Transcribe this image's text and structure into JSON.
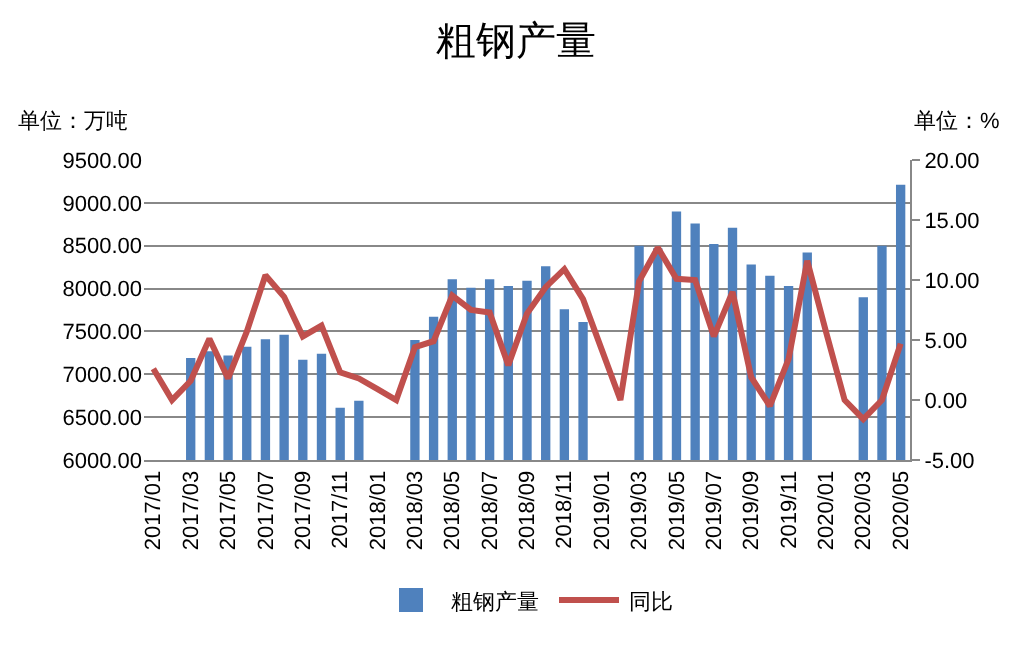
{
  "chart_data": {
    "type": "bar",
    "title": "粗钢产量",
    "ylabel": "单位：万吨",
    "y2label": "单位：%",
    "categories": [
      "2017/01",
      null,
      "2017/03",
      null,
      "2017/05",
      null,
      "2017/07",
      null,
      "2017/09",
      null,
      "2017/11",
      null,
      "2018/01",
      null,
      "2018/03",
      null,
      "2018/05",
      null,
      "2018/07",
      null,
      "2018/09",
      null,
      "2018/11",
      null,
      "2019/01",
      null,
      "2019/03",
      null,
      "2019/05",
      null,
      "2019/07",
      null,
      "2019/09",
      null,
      "2019/11",
      null,
      "2020/01",
      null,
      "2020/03",
      null,
      "2020/05"
    ],
    "series": [
      {
        "name": "粗钢产量",
        "color": "#4f81bd",
        "values": [
          null,
          null,
          7190,
          7270,
          7220,
          7320,
          7410,
          7460,
          7170,
          7240,
          6610,
          6690,
          null,
          null,
          7400,
          7670,
          8110,
          8010,
          8110,
          8030,
          8090,
          8260,
          7760,
          7610,
          null,
          null,
          8500,
          8470,
          8900,
          8760,
          8520,
          8710,
          8280,
          8150,
          8030,
          8420,
          null,
          null,
          7900,
          8500,
          9210
        ]
      },
      {
        "name": "同比",
        "type": "line",
        "axis": "y2",
        "color": "#c0504d",
        "values": [
          2.6,
          0,
          1.6,
          5.1,
          1.8,
          5.7,
          10.4,
          8.6,
          5.3,
          6.2,
          2.3,
          1.8,
          0.9,
          0,
          4.4,
          4.9,
          8.7,
          7.5,
          7.3,
          2.9,
          7.2,
          9.4,
          10.9,
          8.4,
          4.2,
          0,
          9.9,
          12.7,
          10.1,
          10,
          5.3,
          9,
          1.9,
          -0.5,
          3.4,
          11.6,
          5.7,
          0,
          -1.6,
          0,
          4.7
        ]
      }
    ],
    "ylim": [
      6000,
      9500
    ],
    "yticks": [
      {
        "value": 6000,
        "label": "6000.00"
      },
      {
        "value": 6500,
        "label": "6500.00"
      },
      {
        "value": 7000,
        "label": "7000.00"
      },
      {
        "value": 7500,
        "label": "7500.00"
      },
      {
        "value": 8000,
        "label": "8000.00"
      },
      {
        "value": 8500,
        "label": "8500.00"
      },
      {
        "value": 9000,
        "label": "9000.00"
      },
      {
        "value": 9500,
        "label": "9500.00"
      }
    ],
    "y2lim": [
      -5,
      20
    ],
    "y2ticks": [
      {
        "value": -5,
        "label": "-5.00"
      },
      {
        "value": 0,
        "label": "0.00"
      },
      {
        "value": 5,
        "label": "5.00"
      },
      {
        "value": 10,
        "label": "10.00"
      },
      {
        "value": 15,
        "label": "15.00"
      },
      {
        "value": 20,
        "label": "20.00"
      }
    ],
    "grid": "y",
    "legend": "bottom",
    "marker": "none",
    "line_style": "solid"
  }
}
